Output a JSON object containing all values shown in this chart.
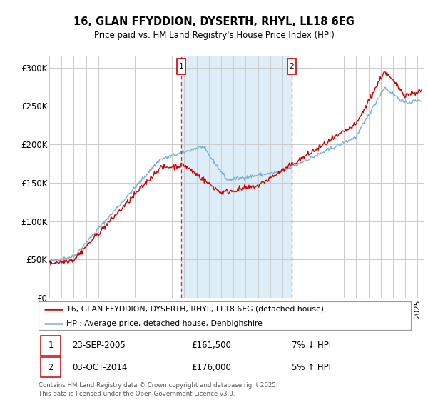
{
  "title": "16, GLAN FFYDDION, DYSERTH, RHYL, LL18 6EG",
  "subtitle": "Price paid vs. HM Land Registry's House Price Index (HPI)",
  "ylabel_ticks": [
    "£0",
    "£50K",
    "£100K",
    "£150K",
    "£200K",
    "£250K",
    "£300K"
  ],
  "ytick_values": [
    0,
    50000,
    100000,
    150000,
    200000,
    250000,
    300000
  ],
  "ylim": [
    0,
    315000
  ],
  "xlim_start": 1995.0,
  "xlim_end": 2025.5,
  "marker1_x": 2005.73,
  "marker2_x": 2014.75,
  "marker1_label": "1",
  "marker2_label": "2",
  "sale1_date": "23-SEP-2005",
  "sale1_price": "£161,500",
  "sale1_hpi": "7% ↓ HPI",
  "sale2_date": "03-OCT-2014",
  "sale2_price": "£176,000",
  "sale2_hpi": "5% ↑ HPI",
  "line1_color": "#cc0000",
  "line2_color": "#7ab0d4",
  "line1_label": "16, GLAN FFYDDION, DYSERTH, RHYL, LL18 6EG (detached house)",
  "line2_label": "HPI: Average price, detached house, Denbighshire",
  "footnote": "Contains HM Land Registry data © Crown copyright and database right 2025.\nThis data is licensed under the Open Government Licence v3.0.",
  "background_color": "#ffffff",
  "plot_bg_color": "#ffffff",
  "shaded_region_color": "#ddeef8",
  "grid_color": "#cccccc",
  "fig_width": 6.0,
  "fig_height": 5.6,
  "dpi": 100
}
